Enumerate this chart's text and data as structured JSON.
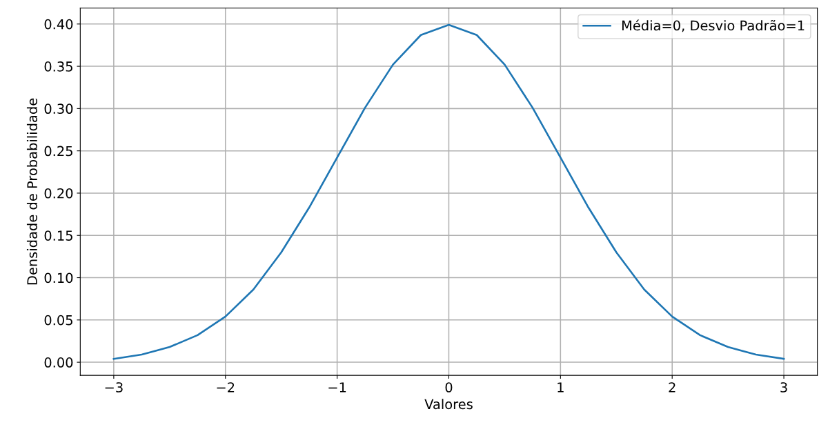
{
  "chart_data": {
    "type": "line",
    "xlabel": "Valores",
    "ylabel": "Densidade de Probabilidade",
    "x": [
      -3,
      -2.75,
      -2.5,
      -2.25,
      -2,
      -1.75,
      -1.5,
      -1.25,
      -1,
      -0.75,
      -0.5,
      -0.25,
      0,
      0.25,
      0.5,
      0.75,
      1,
      1.25,
      1.5,
      1.75,
      2,
      2.25,
      2.5,
      2.75,
      3
    ],
    "series": [
      {
        "name": "Média=0, Desvio Padrão=1",
        "color": "#1f77b4",
        "values": [
          0.004,
          0.009,
          0.018,
          0.032,
          0.054,
          0.086,
          0.13,
          0.183,
          0.242,
          0.301,
          0.352,
          0.387,
          0.399,
          0.387,
          0.352,
          0.301,
          0.242,
          0.183,
          0.13,
          0.086,
          0.054,
          0.032,
          0.018,
          0.009,
          0.004
        ]
      }
    ],
    "xlim": [
      -3.3,
      3.3
    ],
    "ylim": [
      -0.0155,
      0.4188
    ],
    "xticks": [
      {
        "value": -3,
        "label": "−3"
      },
      {
        "value": -2,
        "label": "−2"
      },
      {
        "value": -1,
        "label": "−1"
      },
      0,
      1,
      2,
      3
    ],
    "yticks": [
      {
        "value": 0,
        "label": "0.00"
      },
      {
        "value": 0.05,
        "label": "0.05"
      },
      {
        "value": 0.1,
        "label": "0.10"
      },
      {
        "value": 0.15,
        "label": "0.15"
      },
      {
        "value": 0.2,
        "label": "0.20"
      },
      {
        "value": 0.25,
        "label": "0.25"
      },
      {
        "value": 0.3,
        "label": "0.30"
      },
      {
        "value": 0.35,
        "label": "0.35"
      },
      {
        "value": 0.4,
        "label": "0.40"
      }
    ],
    "grid": true,
    "legend": "top right",
    "marker": "none",
    "line_style": "solid"
  }
}
